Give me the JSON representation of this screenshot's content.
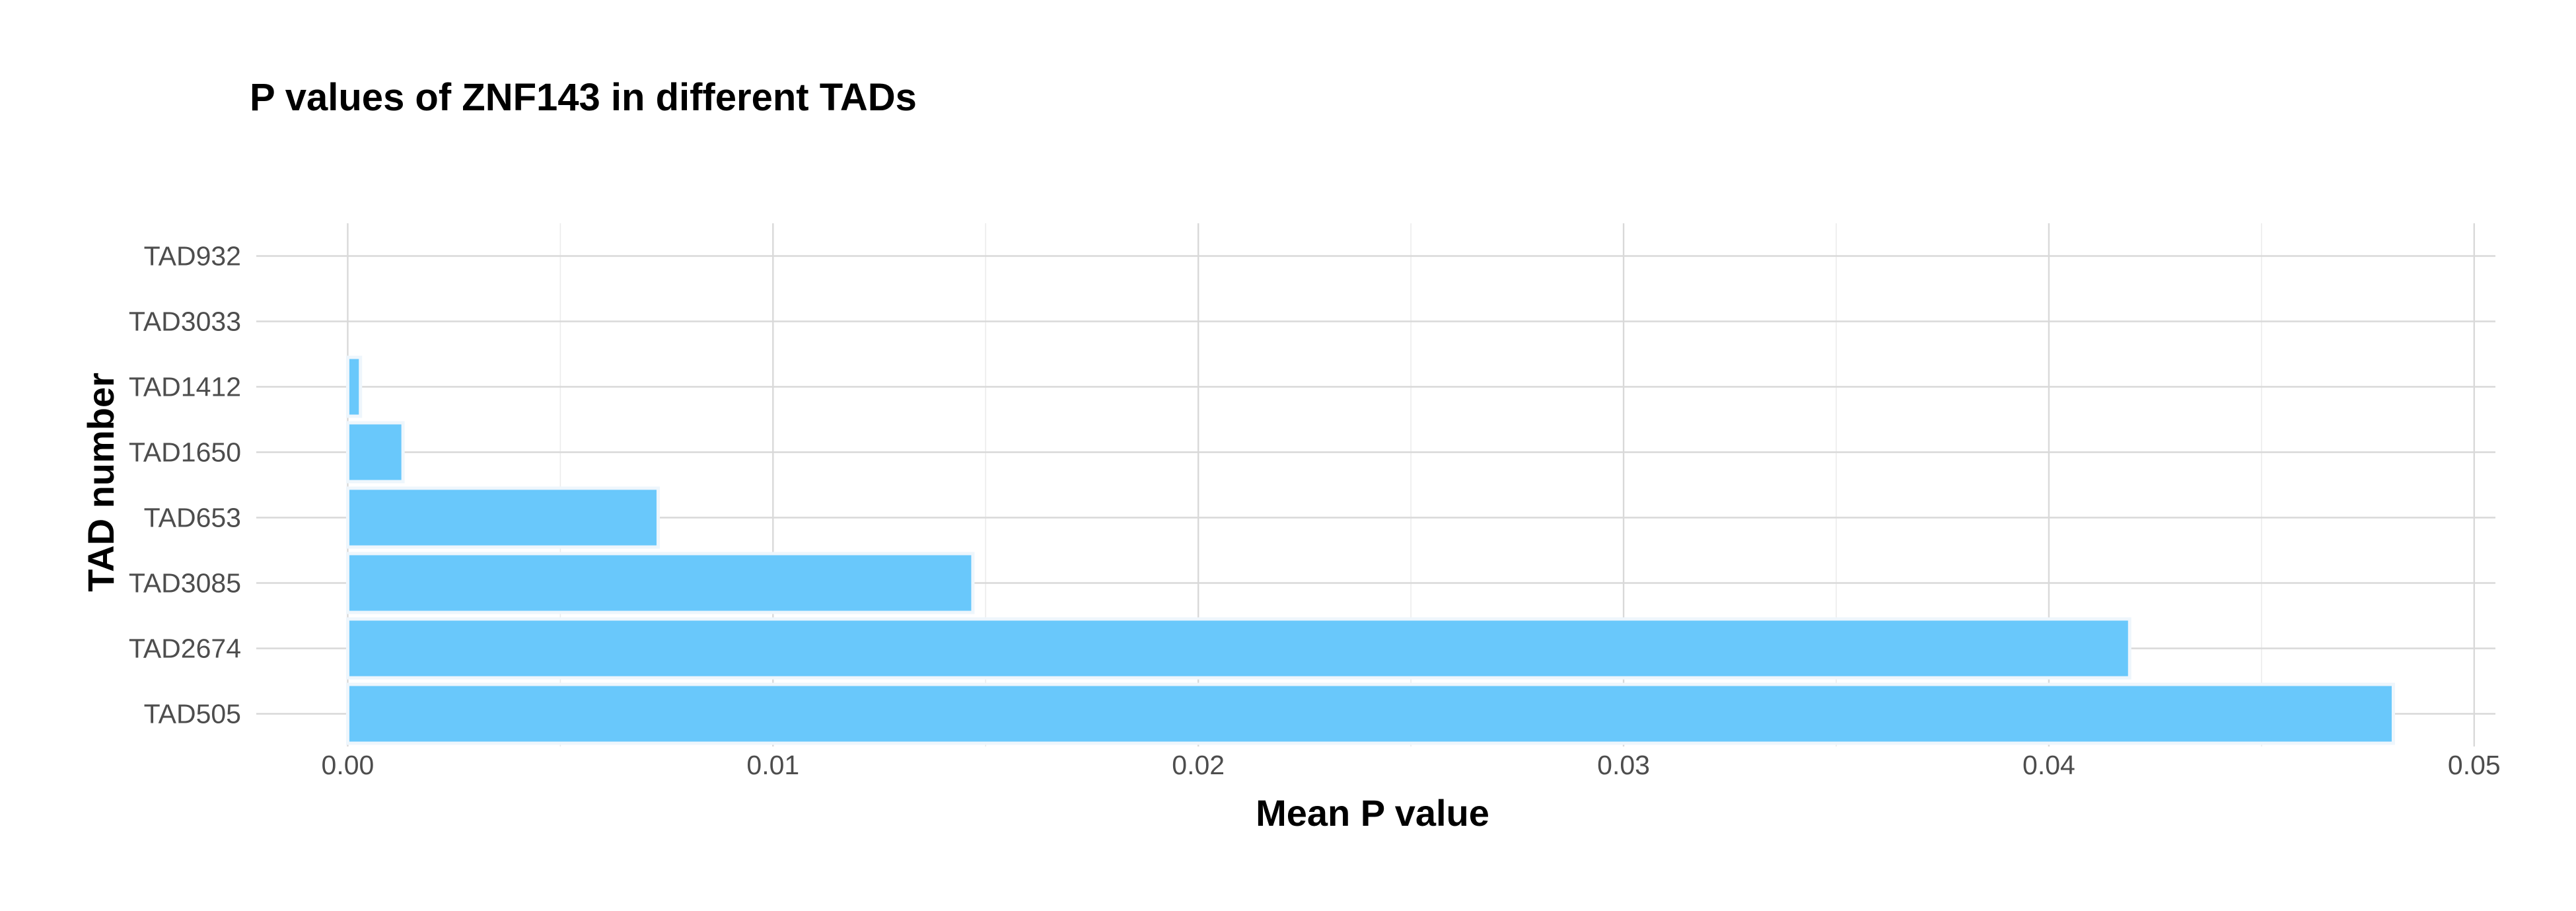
{
  "colors": {
    "bar_fill": "#69c8fb",
    "background": "#ffffff"
  },
  "chart_data": {
    "type": "bar",
    "orientation": "horizontal",
    "title": "P values of ZNF143 in different TADs",
    "xlabel": "Mean P value",
    "ylabel": "TAD number",
    "categories": [
      "TAD505",
      "TAD2674",
      "TAD3085",
      "TAD653",
      "TAD1650",
      "TAD1412",
      "TAD3033",
      "TAD932"
    ],
    "values": [
      0.0481,
      0.0419,
      0.0147,
      0.0073,
      0.0013,
      0.0003,
      0.0,
      0.0
    ],
    "xlim": [
      -0.00215,
      0.0505
    ],
    "xticks": [
      0.0,
      0.01,
      0.02,
      0.03,
      0.04,
      0.05
    ],
    "xtick_labels": [
      "0.00",
      "0.01",
      "0.02",
      "0.03",
      "0.04",
      "0.05"
    ],
    "grid": true,
    "legend": "none"
  }
}
